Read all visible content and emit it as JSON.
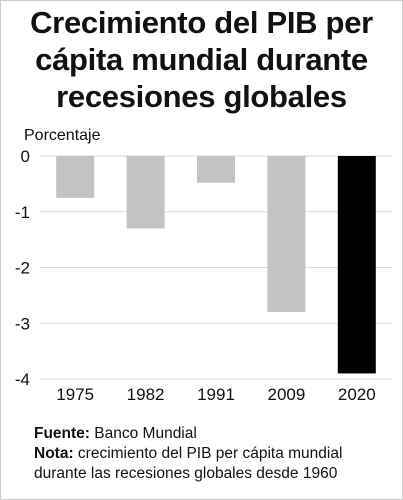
{
  "title_lines": [
    "Crecimiento del PIB per",
    "cápita mundial durante",
    "recesiones globales"
  ],
  "chart_data": {
    "type": "bar",
    "ylabel": "Porcentaje",
    "categories": [
      "1975",
      "1982",
      "1991",
      "2009",
      "2020"
    ],
    "values": [
      -0.75,
      -1.3,
      -0.48,
      -2.8,
      -3.9
    ],
    "ylim": [
      -4,
      0
    ],
    "yticks": [
      0,
      -1,
      -2,
      -3,
      -4
    ],
    "ytick_labels": [
      "0",
      "-1",
      "-2",
      "-3",
      "-4"
    ],
    "grid": true,
    "colors": {
      "bar": "#c3c3c3",
      "highlight_bar": "#000000",
      "highlight_category": "2020",
      "grid": "#d9d9d9"
    }
  },
  "footer": {
    "source_label": "Fuente:",
    "source_text": "Banco Mundial",
    "note_label": "Nota:",
    "note_text": "crecimiento del PIB per cápita mundial durante las recesiones globales desde 1960"
  }
}
